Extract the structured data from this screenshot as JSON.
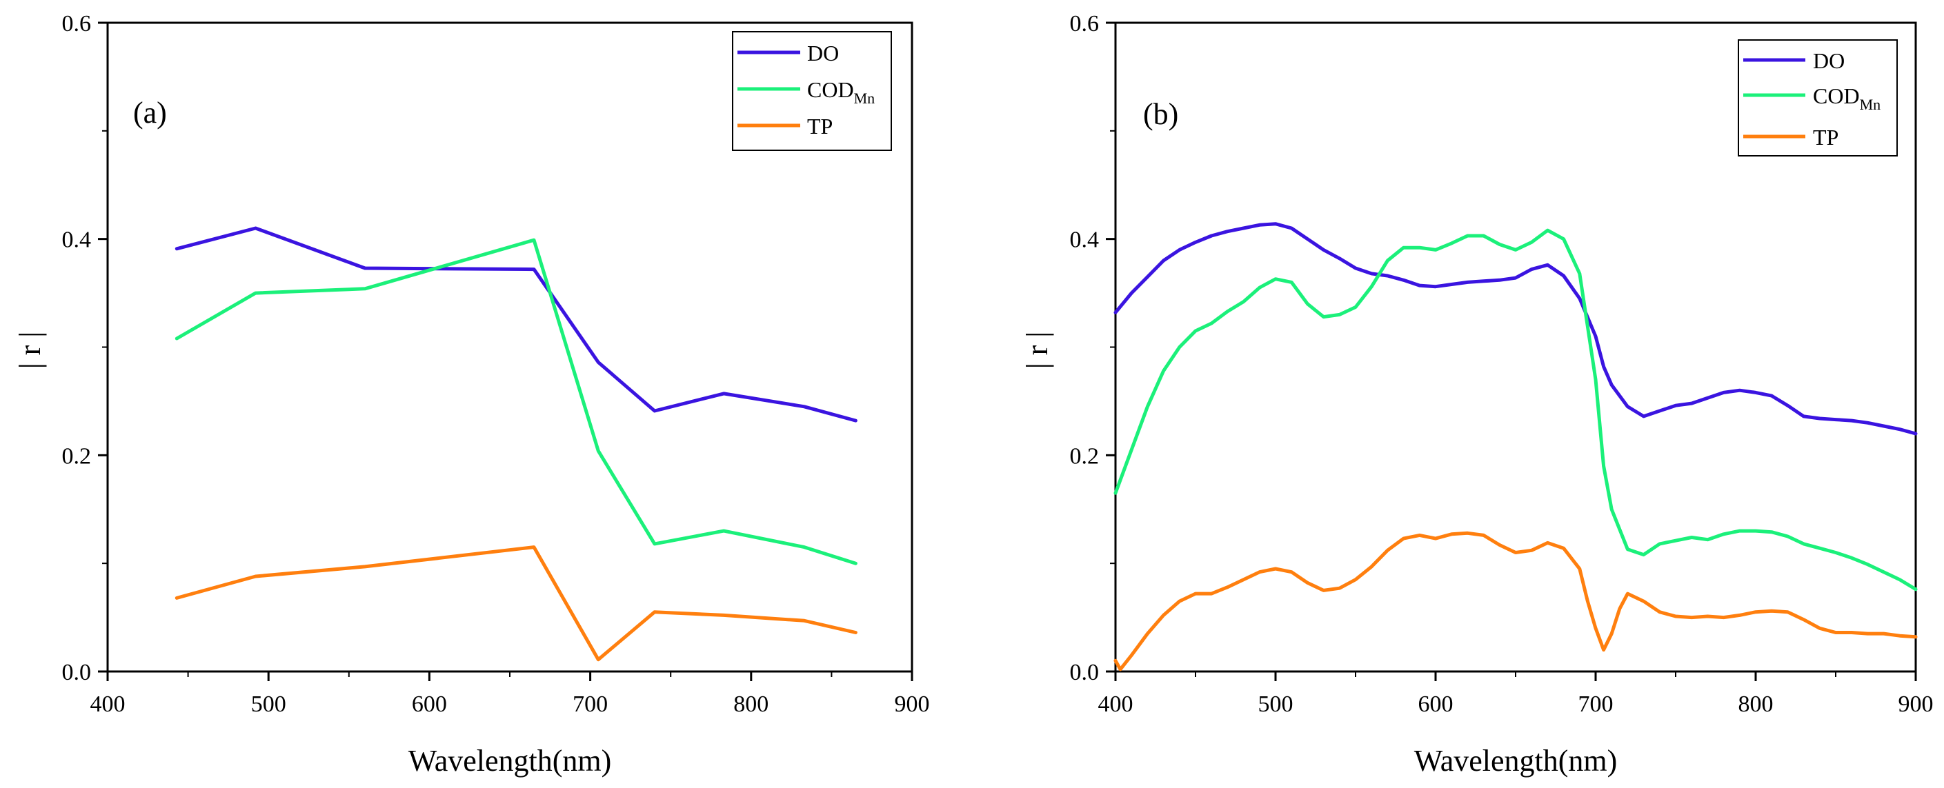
{
  "chart_data": [
    {
      "type": "line",
      "panel_label": "(a)",
      "xlabel": "Wavelength(nm)",
      "ylabel": "| r |",
      "xlim": [
        400,
        900
      ],
      "ylim": [
        0,
        0.6
      ],
      "x_ticks": [
        "400",
        "500",
        "600",
        "700",
        "800",
        "900"
      ],
      "y_ticks": [
        "0.0",
        "0.2",
        "0.4",
        "0.6"
      ],
      "legend_position": "top-right",
      "series": [
        {
          "name": "DO",
          "name_sub": "",
          "color": "#3a14e0",
          "x": [
            443,
            492,
            560,
            665,
            705,
            740,
            783,
            833,
            865
          ],
          "y": [
            0.391,
            0.41,
            0.373,
            0.372,
            0.286,
            0.241,
            0.257,
            0.245,
            0.232
          ]
        },
        {
          "name": "COD",
          "name_sub": "Mn",
          "color": "#1bf07a",
          "x": [
            443,
            492,
            560,
            665,
            705,
            740,
            783,
            833,
            865
          ],
          "y": [
            0.308,
            0.35,
            0.354,
            0.399,
            0.204,
            0.118,
            0.13,
            0.115,
            0.1
          ]
        },
        {
          "name": "TP",
          "name_sub": "",
          "color": "#ff7f0e",
          "x": [
            443,
            492,
            560,
            665,
            705,
            740,
            783,
            833,
            865
          ],
          "y": [
            0.068,
            0.088,
            0.097,
            0.115,
            0.011,
            0.055,
            0.052,
            0.047,
            0.036
          ]
        }
      ]
    },
    {
      "type": "line",
      "panel_label": "(b)",
      "xlabel": "Wavelength(nm)",
      "ylabel": "| r |",
      "xlim": [
        400,
        900
      ],
      "ylim": [
        0,
        0.6
      ],
      "x_ticks": [
        "400",
        "500",
        "600",
        "700",
        "800",
        "900"
      ],
      "y_ticks": [
        "0.0",
        "0.2",
        "0.4",
        "0.6"
      ],
      "legend_position": "top-right",
      "series": [
        {
          "name": "DO",
          "name_sub": "",
          "color": "#3a14e0",
          "x": [
            400,
            410,
            420,
            430,
            440,
            450,
            460,
            470,
            480,
            490,
            500,
            510,
            520,
            530,
            540,
            550,
            560,
            570,
            580,
            590,
            600,
            610,
            620,
            630,
            640,
            650,
            660,
            670,
            680,
            690,
            700,
            705,
            710,
            720,
            730,
            740,
            750,
            760,
            770,
            780,
            790,
            800,
            810,
            820,
            830,
            840,
            850,
            860,
            870,
            880,
            890,
            900
          ],
          "y": [
            0.332,
            0.35,
            0.365,
            0.38,
            0.39,
            0.397,
            0.403,
            0.407,
            0.41,
            0.413,
            0.414,
            0.41,
            0.4,
            0.39,
            0.382,
            0.373,
            0.368,
            0.366,
            0.362,
            0.357,
            0.356,
            0.358,
            0.36,
            0.361,
            0.362,
            0.364,
            0.372,
            0.376,
            0.366,
            0.345,
            0.31,
            0.282,
            0.265,
            0.245,
            0.236,
            0.241,
            0.246,
            0.248,
            0.253,
            0.258,
            0.26,
            0.258,
            0.255,
            0.246,
            0.236,
            0.234,
            0.233,
            0.232,
            0.23,
            0.227,
            0.224,
            0.22
          ]
        },
        {
          "name": "COD",
          "name_sub": "Mn",
          "color": "#1bf07a",
          "x": [
            400,
            410,
            420,
            430,
            440,
            450,
            460,
            470,
            480,
            490,
            500,
            510,
            520,
            530,
            540,
            550,
            560,
            570,
            580,
            590,
            600,
            610,
            620,
            630,
            640,
            650,
            660,
            670,
            680,
            690,
            700,
            705,
            710,
            720,
            730,
            740,
            750,
            760,
            770,
            780,
            790,
            800,
            810,
            820,
            830,
            840,
            850,
            860,
            870,
            880,
            890,
            900
          ],
          "y": [
            0.165,
            0.205,
            0.245,
            0.278,
            0.3,
            0.315,
            0.322,
            0.333,
            0.342,
            0.355,
            0.363,
            0.36,
            0.34,
            0.328,
            0.33,
            0.337,
            0.356,
            0.38,
            0.392,
            0.392,
            0.39,
            0.396,
            0.403,
            0.403,
            0.395,
            0.39,
            0.397,
            0.408,
            0.4,
            0.368,
            0.27,
            0.19,
            0.15,
            0.113,
            0.108,
            0.118,
            0.121,
            0.124,
            0.122,
            0.127,
            0.13,
            0.13,
            0.129,
            0.125,
            0.118,
            0.114,
            0.11,
            0.105,
            0.099,
            0.092,
            0.085,
            0.076
          ]
        },
        {
          "name": "TP",
          "name_sub": "",
          "color": "#ff7f0e",
          "x": [
            400,
            403,
            410,
            420,
            430,
            440,
            450,
            460,
            470,
            480,
            490,
            500,
            510,
            520,
            530,
            540,
            550,
            560,
            570,
            580,
            590,
            600,
            610,
            620,
            630,
            640,
            650,
            660,
            670,
            680,
            690,
            695,
            700,
            705,
            710,
            715,
            720,
            730,
            740,
            750,
            760,
            770,
            780,
            790,
            800,
            810,
            820,
            830,
            840,
            850,
            860,
            870,
            880,
            890,
            900
          ],
          "y": [
            0.01,
            0.002,
            0.015,
            0.035,
            0.052,
            0.065,
            0.072,
            0.072,
            0.078,
            0.085,
            0.092,
            0.095,
            0.092,
            0.082,
            0.075,
            0.077,
            0.085,
            0.097,
            0.112,
            0.123,
            0.126,
            0.123,
            0.127,
            0.128,
            0.126,
            0.117,
            0.11,
            0.112,
            0.119,
            0.114,
            0.095,
            0.065,
            0.04,
            0.02,
            0.035,
            0.058,
            0.072,
            0.065,
            0.055,
            0.051,
            0.05,
            0.051,
            0.05,
            0.052,
            0.055,
            0.056,
            0.055,
            0.048,
            0.04,
            0.036,
            0.036,
            0.035,
            0.035,
            0.033,
            0.032
          ]
        }
      ]
    }
  ]
}
